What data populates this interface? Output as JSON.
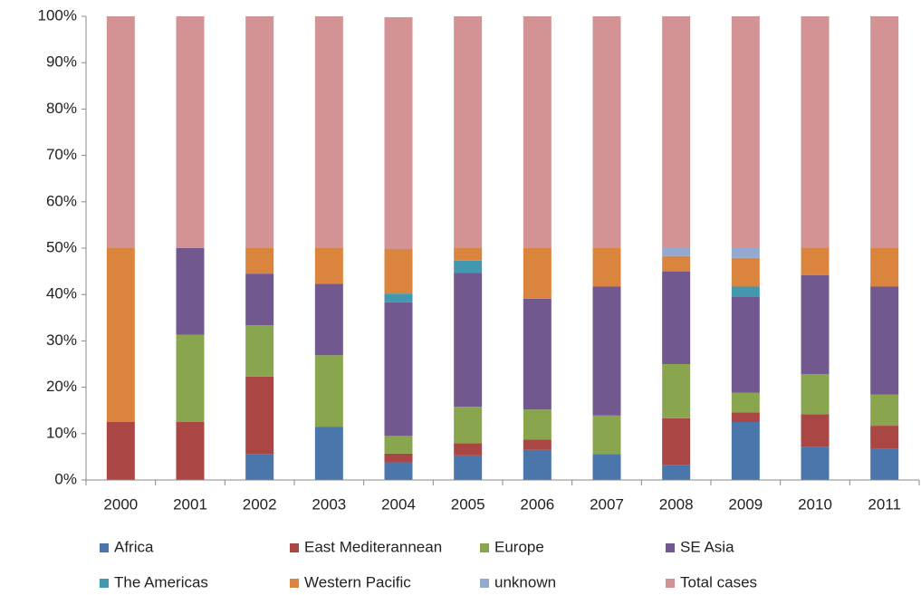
{
  "chart_data": {
    "type": "stacked_bar_100",
    "categories": [
      "2000",
      "2001",
      "2002",
      "2003",
      "2004",
      "2005",
      "2006",
      "2007",
      "2008",
      "2009",
      "2010",
      "2011"
    ],
    "series": [
      {
        "name": "Africa",
        "color": "#4a76ac",
        "values": [
          0,
          0,
          5.6,
          11.5,
          3.8,
          5.3,
          6.5,
          5.6,
          3.3,
          12.5,
          7.1,
          6.7
        ]
      },
      {
        "name": "East Mediterannean",
        "color": "#aa4643",
        "values": [
          12.5,
          12.5,
          16.7,
          0,
          1.9,
          2.6,
          2.2,
          0,
          10,
          2.1,
          7.1,
          5
        ]
      },
      {
        "name": "Europe",
        "color": "#89a54e",
        "values": [
          0,
          18.8,
          11.1,
          15.4,
          3.8,
          7.9,
          6.5,
          8.3,
          11.7,
          4.2,
          8.6,
          6.7
        ]
      },
      {
        "name": "SE Asia",
        "color": "#71588f",
        "values": [
          0,
          18.7,
          11.1,
          15.4,
          28.8,
          28.9,
          23.9,
          27.8,
          20,
          20.8,
          21.4,
          23.3
        ]
      },
      {
        "name": "The Americas",
        "color": "#4198af",
        "values": [
          0,
          0,
          0,
          0,
          1.9,
          2.6,
          0,
          0,
          0,
          2.1,
          0,
          0
        ]
      },
      {
        "name": "Western Pacific",
        "color": "#db843d",
        "values": [
          37.5,
          0,
          5.5,
          7.7,
          9.6,
          2.7,
          10.9,
          8.3,
          3.3,
          6.2,
          5.8,
          8.3
        ]
      },
      {
        "name": "unknown",
        "color": "#93a9cf",
        "values": [
          0,
          0,
          0,
          0,
          0,
          0,
          0,
          0,
          1.7,
          2.1,
          0,
          0
        ]
      },
      {
        "name": "Total cases",
        "color": "#d39293",
        "values": [
          50,
          50,
          50,
          50,
          50,
          50,
          50,
          50,
          50,
          50,
          50,
          50
        ]
      }
    ],
    "ylim": [
      0,
      100
    ],
    "yticks": [
      {
        "value": 0,
        "label": "0%"
      },
      {
        "value": 10,
        "label": "10%"
      },
      {
        "value": 20,
        "label": "20%"
      },
      {
        "value": 30,
        "label": "30%"
      },
      {
        "value": 40,
        "label": "40%"
      },
      {
        "value": 50,
        "label": "50%"
      },
      {
        "value": 60,
        "label": "60%"
      },
      {
        "value": 70,
        "label": "70%"
      },
      {
        "value": 80,
        "label": "80%"
      },
      {
        "value": 90,
        "label": "90%"
      },
      {
        "value": 100,
        "label": "100%"
      }
    ],
    "grid": false,
    "legend": "bottom"
  }
}
